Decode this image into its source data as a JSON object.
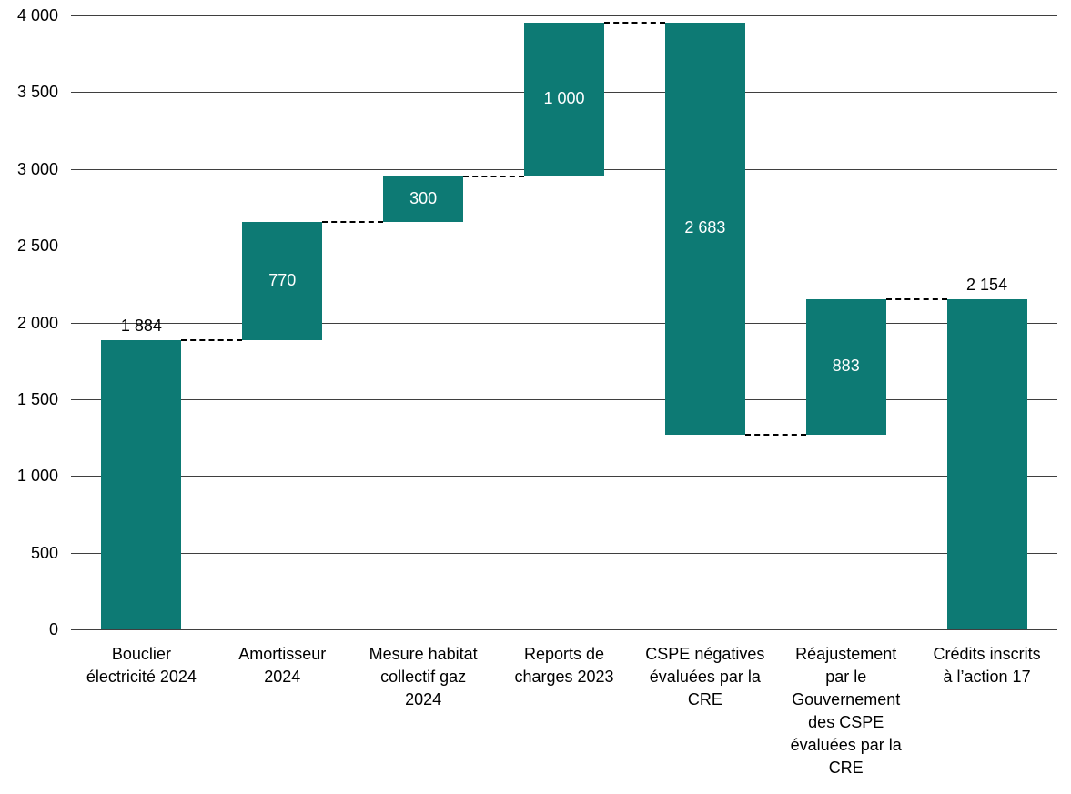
{
  "chart_data": {
    "type": "waterfall",
    "title": "",
    "xlabel": "",
    "ylabel": "",
    "ylim": [
      0,
      4000
    ],
    "ytick_step": 500,
    "grid": true,
    "legend": false,
    "connector_style": "dashed",
    "bar_color": "#0d7a74",
    "inside_label_color": "#ffffff",
    "outside_label_color": "#000000",
    "yticks": [
      {
        "value": 0,
        "label": "0"
      },
      {
        "value": 500,
        "label": "500"
      },
      {
        "value": 1000,
        "label": "1 000"
      },
      {
        "value": 1500,
        "label": "1 500"
      },
      {
        "value": 2000,
        "label": "2 000"
      },
      {
        "value": 2500,
        "label": "2 500"
      },
      {
        "value": 3000,
        "label": "3 000"
      },
      {
        "value": 3500,
        "label": "3 500"
      },
      {
        "value": 4000,
        "label": "4 000"
      }
    ],
    "categories": [
      "Bouclier électricité 2024",
      "Amortisseur 2024",
      "Mesure habitat collectif gaz 2024",
      "Reports de charges 2023",
      "CSPE négatives évaluées par la CRE",
      "Réajustement par le Gouvernement des CSPE évaluées par la CRE",
      "Crédits inscrits à l’action 17"
    ],
    "category_display_lines": [
      [
        "Bouclier",
        "électricité 2024"
      ],
      [
        "Amortisseur",
        "2024"
      ],
      [
        "Mesure habitat",
        "collectif gaz",
        "2024"
      ],
      [
        "Reports de",
        "charges 2023"
      ],
      [
        "CSPE négatives",
        "évaluées par la",
        "CRE"
      ],
      [
        "Réajustement",
        "par le",
        "Gouvernement",
        "des CSPE",
        "évaluées par la",
        "CRE"
      ],
      [
        "Crédits inscrits",
        "à l’action 17"
      ]
    ],
    "bars": [
      {
        "category": "Bouclier électricité 2024",
        "delta": 1884,
        "start": 0,
        "end": 1884,
        "value_label": "1 884",
        "label_placement": "above"
      },
      {
        "category": "Amortisseur 2024",
        "delta": 770,
        "start": 1884,
        "end": 2654,
        "value_label": "770",
        "label_placement": "inside"
      },
      {
        "category": "Mesure habitat collectif gaz 2024",
        "delta": 300,
        "start": 2654,
        "end": 2954,
        "value_label": "300",
        "label_placement": "inside"
      },
      {
        "category": "Reports de charges 2023",
        "delta": 1000,
        "start": 2954,
        "end": 3954,
        "value_label": "1 000",
        "label_placement": "inside"
      },
      {
        "category": "CSPE négatives évaluées par la CRE",
        "delta": -2683,
        "start": 3954,
        "end": 1271,
        "value_label": "2 683",
        "label_placement": "inside"
      },
      {
        "category": "Réajustement par le Gouvernement des CSPE évaluées par la CRE",
        "delta": 883,
        "start": 1271,
        "end": 2154,
        "value_label": "883",
        "label_placement": "inside"
      },
      {
        "category": "Crédits inscrits à l’action 17",
        "delta": 2154,
        "start": 0,
        "end": 2154,
        "value_label": "2 154",
        "label_placement": "above"
      }
    ],
    "final_total": 2154
  }
}
